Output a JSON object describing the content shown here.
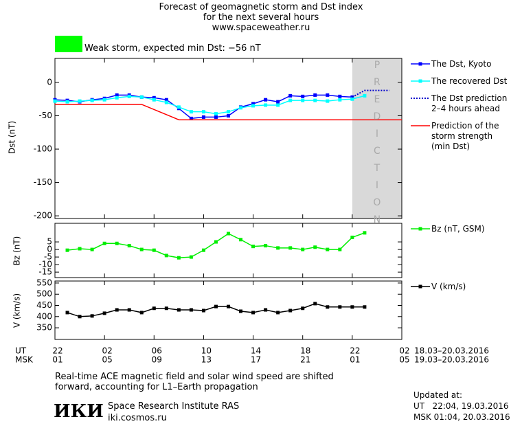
{
  "header": {
    "title": "Forecast of geomagnetic storm and Dst index\nfor the next several hours\nwww.spaceweather.ru"
  },
  "status": {
    "text": "Weak storm, expected min Dst: −56 nT",
    "color": "#00ff00"
  },
  "chart_data": [
    {
      "type": "line",
      "ylabel": "Dst (nT)",
      "xlim": [
        0,
        28
      ],
      "ylim": [
        -204,
        36
      ],
      "yticks": [
        -200,
        -150,
        -100,
        -50,
        0
      ],
      "band": {
        "x": [
          24,
          28
        ],
        "label": "PREDICTION",
        "color": "#d9d9d9"
      },
      "series": [
        {
          "name": "The Dst, Kyoto",
          "color": "#0000ff",
          "marker": "square",
          "x": [
            0,
            1,
            2,
            3,
            4,
            5,
            6,
            7,
            8,
            9,
            10,
            11,
            12,
            13,
            14,
            15,
            16,
            17,
            18,
            19,
            20,
            21,
            22,
            23,
            24
          ],
          "values": [
            -26,
            -27,
            -29,
            -26,
            -24,
            -19,
            -19,
            -22,
            -23,
            -26,
            -39,
            -54,
            -52,
            -52,
            -50,
            -37,
            -32,
            -26,
            -29,
            -20,
            -21,
            -19,
            -19,
            -21,
            -22
          ]
        },
        {
          "name": "The recovered Dst",
          "color": "#00ffff",
          "marker": "square",
          "x": [
            0,
            1,
            2,
            3,
            4,
            5,
            6,
            7,
            8,
            9,
            10,
            11,
            12,
            13,
            14,
            15,
            16,
            17,
            18,
            19,
            20,
            21,
            22,
            23,
            24,
            25
          ],
          "values": [
            -28,
            -29,
            -28,
            -27,
            -26,
            -23,
            -21,
            -22,
            -26,
            -30,
            -37,
            -44,
            -44,
            -47,
            -44,
            -38,
            -35,
            -34,
            -34,
            -27,
            -27,
            -27,
            -28,
            -26,
            -25,
            -20
          ]
        },
        {
          "name": "The Dst prediction\n2–4 hours ahead",
          "color": "#0000cc",
          "dash": true,
          "x": [
            24,
            25,
            27
          ],
          "values": [
            -22,
            -12,
            -12
          ]
        },
        {
          "name": "Prediction of the\nstorm strength\n(min Dst)",
          "color": "#ff0000",
          "x": [
            0,
            7,
            10,
            28
          ],
          "values": [
            -33,
            -33,
            -56,
            -56
          ]
        }
      ]
    },
    {
      "type": "line",
      "ylabel": "Bz (nT)",
      "xlim": [
        0,
        28
      ],
      "ylim": [
        -18.6,
        17.3
      ],
      "yticks": [
        -15,
        -10,
        -5,
        0,
        5
      ],
      "series": [
        {
          "name": "Bz (nT, GSM)",
          "color": "#00ee00",
          "marker": "square",
          "x": [
            1,
            2,
            3,
            4,
            5,
            6,
            7,
            8,
            9,
            10,
            11,
            12,
            13,
            14,
            15,
            16,
            17,
            18,
            19,
            20,
            21,
            22,
            23,
            24,
            25
          ],
          "values": [
            -0.5,
            0.5,
            0,
            4,
            4,
            2.5,
            0,
            -0.5,
            -4,
            -5.5,
            -5,
            -0.5,
            5,
            10.5,
            6.5,
            2,
            2.5,
            1,
            1,
            0,
            1.5,
            0,
            0,
            8,
            11
          ]
        }
      ]
    },
    {
      "type": "line",
      "ylabel": "V (km/s)",
      "xlim": [
        0,
        28
      ],
      "ylim": [
        298,
        559
      ],
      "yticks": [
        350,
        400,
        450,
        500,
        550
      ],
      "xaxis_rows": [
        "UT",
        "MSK"
      ],
      "xticks": [
        {
          "value": 0,
          "label": "22"
        },
        {
          "value": 4,
          "label": "02"
        },
        {
          "value": 8,
          "label": "06"
        },
        {
          "value": 12,
          "label": "10"
        },
        {
          "value": 16,
          "label": "14"
        },
        {
          "value": 20,
          "label": "18"
        },
        {
          "value": 24,
          "label": "22"
        },
        {
          "value": 28,
          "label": "02"
        }
      ],
      "xtick_labels_msk": [
        "01",
        "05",
        "09",
        "13",
        "17",
        "21",
        "01",
        "05"
      ],
      "date_ranges": [
        "18.03–20.03.2016",
        "19.03–20.03.2016"
      ],
      "series": [
        {
          "name": "V (km/s)",
          "color": "#000000",
          "marker": "square",
          "x": [
            1,
            2,
            3,
            4,
            5,
            6,
            7,
            8,
            9,
            10,
            11,
            12,
            13,
            14,
            15,
            16,
            17,
            18,
            19,
            20,
            21,
            22,
            23,
            24,
            25
          ],
          "values": [
            418,
            400,
            403,
            415,
            430,
            430,
            418,
            437,
            437,
            430,
            430,
            427,
            445,
            445,
            424,
            418,
            430,
            418,
            427,
            437,
            458,
            443,
            443,
            443,
            443
          ]
        }
      ]
    }
  ],
  "footer": {
    "note": "Real-time ACE magnetic field and solar wind speed are shifted\nforward, accounting for L1–Earth propagation",
    "logo": "ИКИ",
    "institute": "Space Research Institute RAS",
    "url": "iki.cosmos.ru",
    "updated_title": "Updated at:",
    "updated_ut": "UT   22:04, 19.03.2016",
    "updated_msk": "MSK 01:04, 20.03.2016"
  }
}
